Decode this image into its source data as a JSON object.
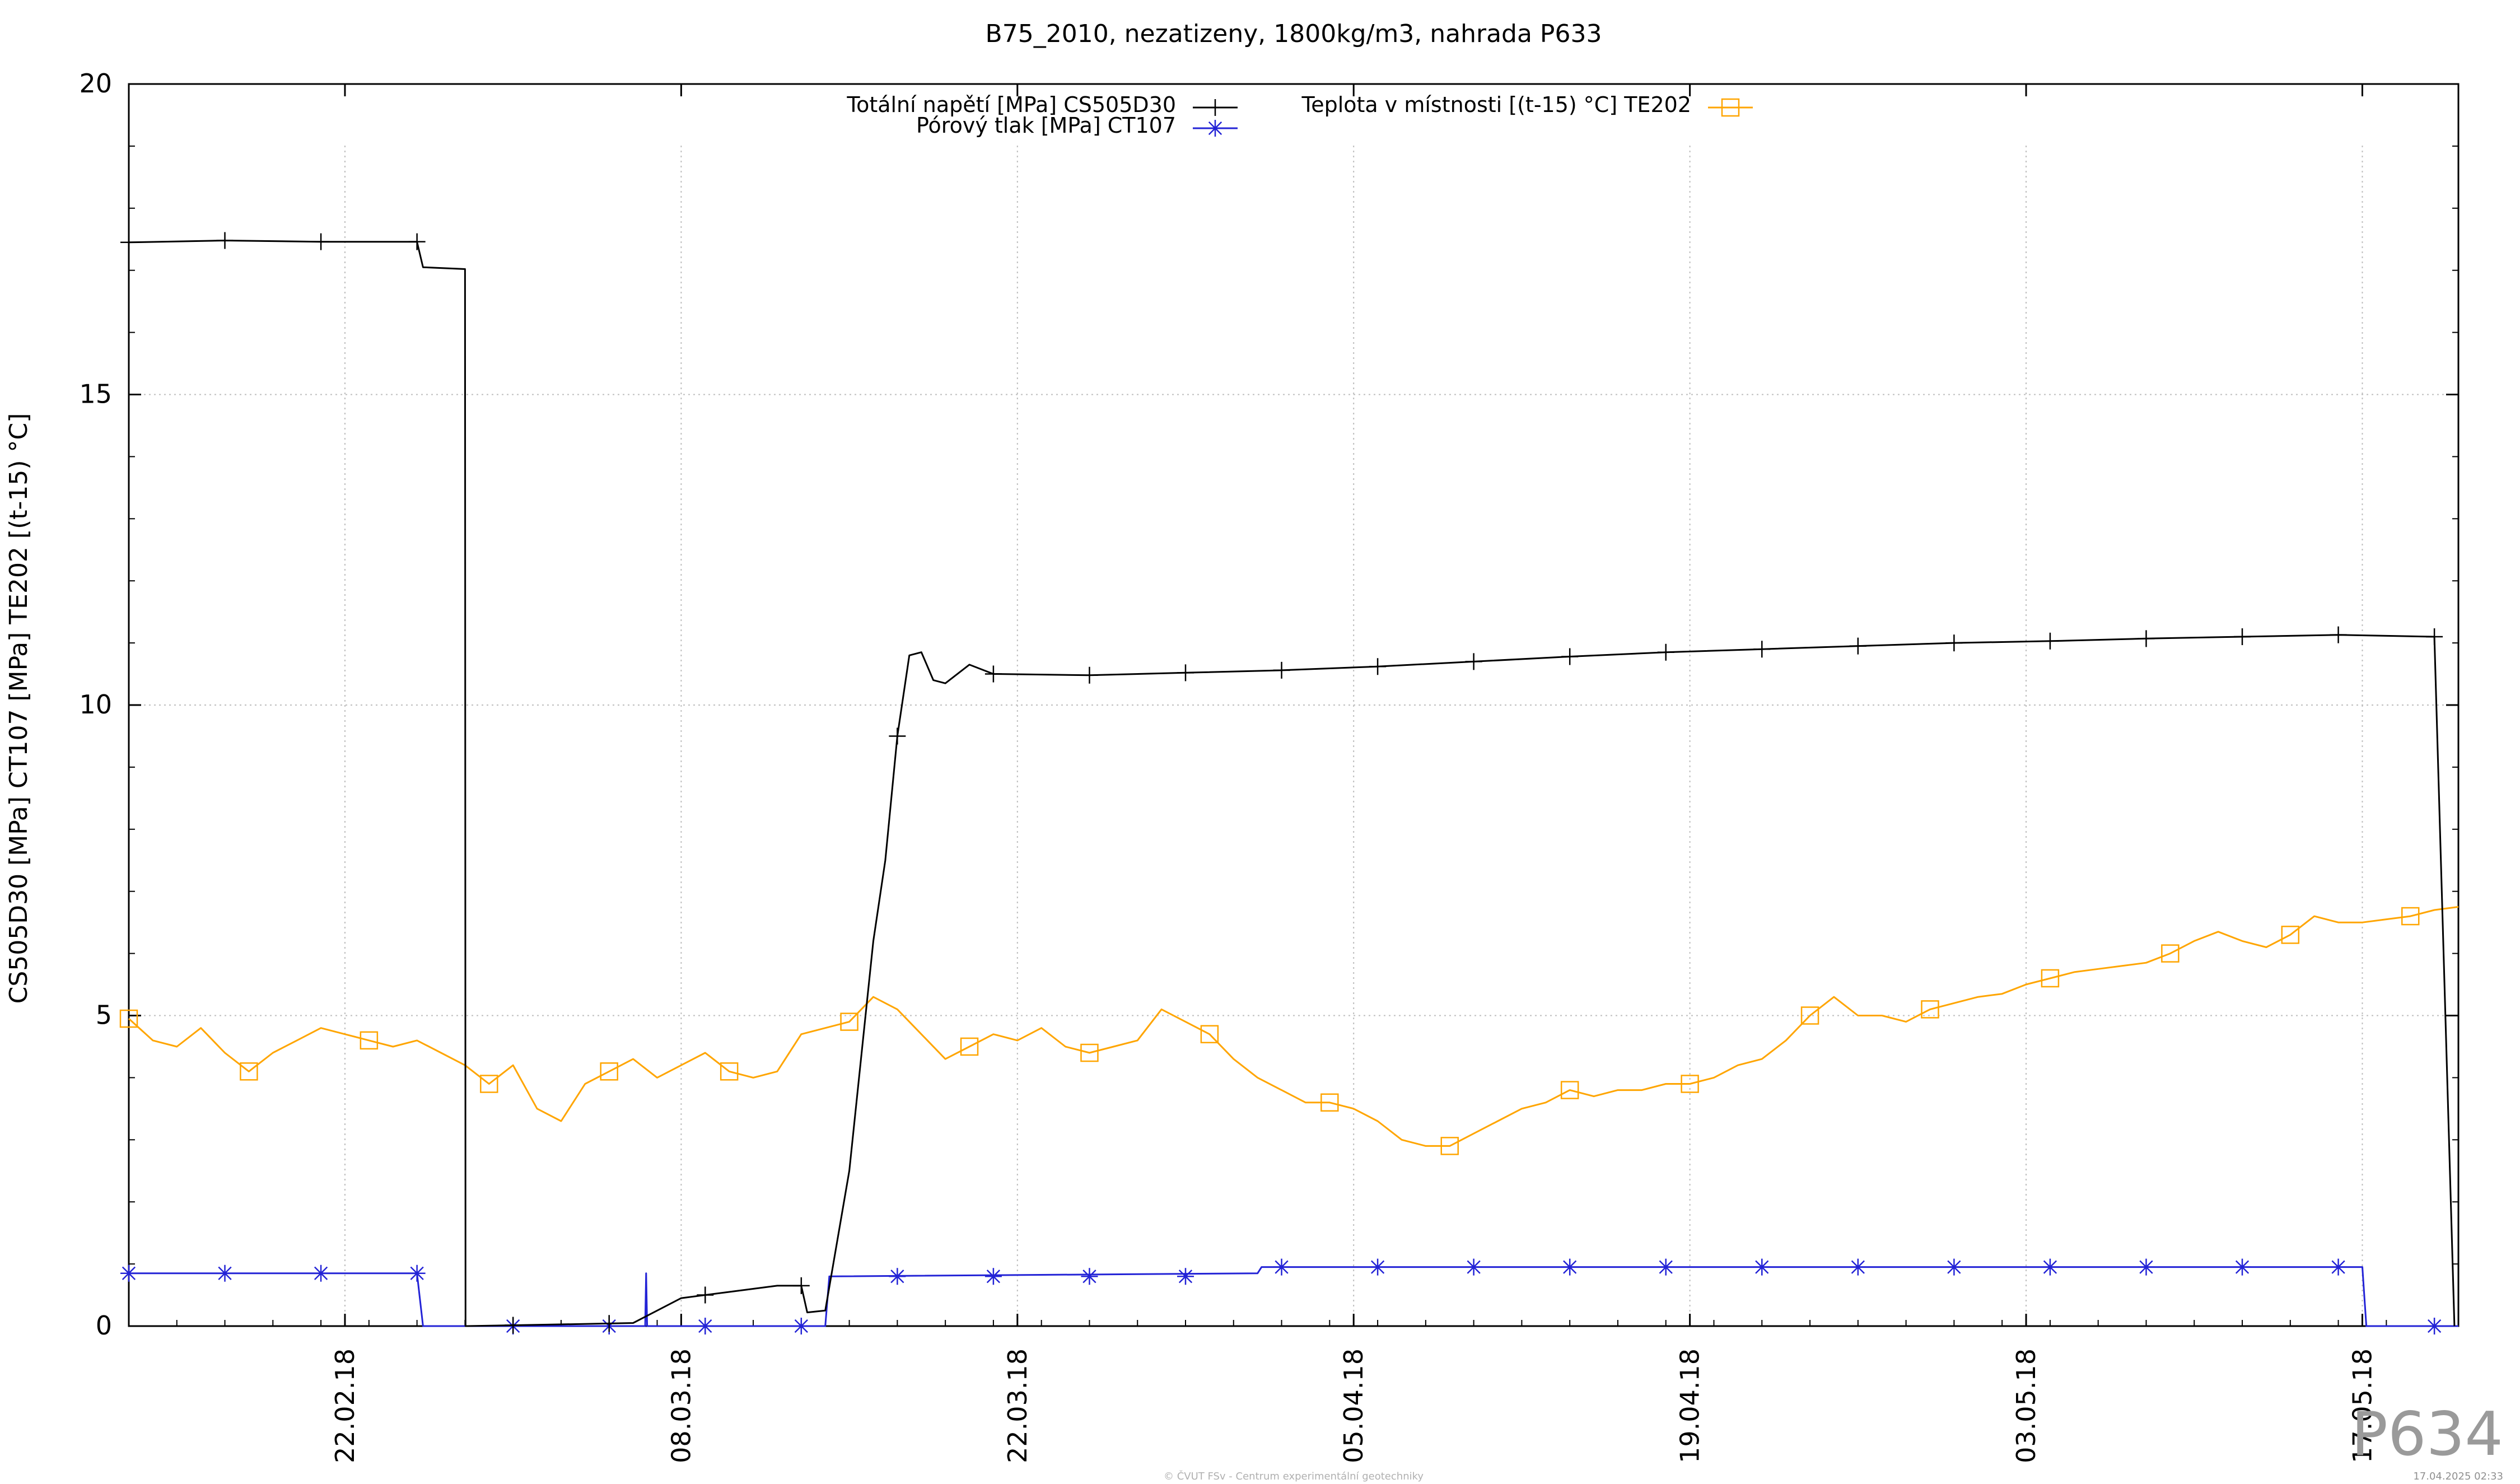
{
  "chart_data": {
    "type": "line",
    "title": "B75_2010, nezatizeny, 1800kg/m3, nahrada P633",
    "xlabel": "",
    "ylabel": "CS505D30 [MPa] CT107 [MPa] TE202 [(t-15) °C]",
    "xlim": [
      "2018-02-13",
      "2018-05-21"
    ],
    "ylim": [
      0,
      20
    ],
    "y_ticks": [
      0,
      5,
      10,
      15,
      20
    ],
    "x_ticks": [
      {
        "date": "2018-02-22",
        "label": "22.02.18"
      },
      {
        "date": "2018-03-08",
        "label": "08.03.18"
      },
      {
        "date": "2018-03-22",
        "label": "22.03.18"
      },
      {
        "date": "2018-04-05",
        "label": "05.04.18"
      },
      {
        "date": "2018-04-19",
        "label": "19.04.18"
      },
      {
        "date": "2018-05-03",
        "label": "03.05.18"
      },
      {
        "date": "2018-05-17",
        "label": "17.05.18"
      }
    ],
    "grid": true,
    "legend": "top",
    "series": [
      {
        "name": "Totální napětí [MPa] CS505D30",
        "color": "#000000",
        "marker": "plus",
        "x": [
          "2018-02-13",
          "2018-02-17",
          "2018-02-21",
          "2018-02-25",
          "2018-02-25T06:00",
          "2018-02-27",
          "2018-02-27T00:30",
          "2018-03-02",
          "2018-03-06",
          "2018-03-07",
          "2018-03-08",
          "2018-03-10",
          "2018-03-12",
          "2018-03-13",
          "2018-03-13T06:00",
          "2018-03-14",
          "2018-03-15",
          "2018-03-16",
          "2018-03-16T12:00",
          "2018-03-17",
          "2018-03-17T12:00",
          "2018-03-18",
          "2018-03-18T12:00",
          "2018-03-19",
          "2018-03-20",
          "2018-03-21",
          "2018-03-25",
          "2018-03-29",
          "2018-04-02",
          "2018-04-06",
          "2018-04-10",
          "2018-04-14",
          "2018-04-18",
          "2018-04-22",
          "2018-04-26",
          "2018-04-30",
          "2018-05-04",
          "2018-05-08",
          "2018-05-12",
          "2018-05-16",
          "2018-05-20",
          "2018-05-20T20:00"
        ],
        "y": [
          17.45,
          17.48,
          17.46,
          17.46,
          17.05,
          17.02,
          0.0,
          0.02,
          0.05,
          0.25,
          0.45,
          0.55,
          0.65,
          0.65,
          0.22,
          0.25,
          2.5,
          6.2,
          7.5,
          9.5,
          10.8,
          10.85,
          10.4,
          10.35,
          10.65,
          10.5,
          10.48,
          10.52,
          10.56,
          10.62,
          10.7,
          10.78,
          10.85,
          10.9,
          10.95,
          11.0,
          11.03,
          11.07,
          11.1,
          11.13,
          11.1,
          0.0
        ]
      },
      {
        "name": "Pórový tlak [MPa] CT107",
        "color": "#2323d6",
        "marker": "star",
        "x": [
          "2018-02-13",
          "2018-02-25",
          "2018-02-25T06:00",
          "2018-03-06T12:00",
          "2018-03-06T13:00",
          "2018-03-06T14:00",
          "2018-03-14",
          "2018-03-14T04:00",
          "2018-04-01",
          "2018-04-01T04:00",
          "2018-05-17",
          "2018-05-17T04:00",
          "2018-05-21"
        ],
        "y": [
          0.85,
          0.85,
          0.0,
          0.0,
          0.85,
          0.0,
          0.0,
          0.8,
          0.85,
          0.95,
          0.95,
          0.0,
          0.0
        ]
      },
      {
        "name": "Teplota v místnosti [(t-15) °C] TE202",
        "color": "#ffa500",
        "marker": "square",
        "x": [
          "2018-02-13",
          "2018-02-14",
          "2018-02-15",
          "2018-02-16",
          "2018-02-17",
          "2018-02-18",
          "2018-02-19",
          "2018-02-20",
          "2018-02-21",
          "2018-02-22",
          "2018-02-23",
          "2018-02-24",
          "2018-02-25",
          "2018-02-26",
          "2018-02-27",
          "2018-02-28",
          "2018-03-01",
          "2018-03-02",
          "2018-03-03",
          "2018-03-04",
          "2018-03-05",
          "2018-03-06",
          "2018-03-07",
          "2018-03-08",
          "2018-03-09",
          "2018-03-10",
          "2018-03-11",
          "2018-03-12",
          "2018-03-13",
          "2018-03-14",
          "2018-03-15",
          "2018-03-16",
          "2018-03-17",
          "2018-03-18",
          "2018-03-19",
          "2018-03-20",
          "2018-03-21",
          "2018-03-22",
          "2018-03-23",
          "2018-03-24",
          "2018-03-25",
          "2018-03-26",
          "2018-03-27",
          "2018-03-28",
          "2018-03-29",
          "2018-03-30",
          "2018-03-31",
          "2018-04-01",
          "2018-04-02",
          "2018-04-03",
          "2018-04-04",
          "2018-04-05",
          "2018-04-06",
          "2018-04-07",
          "2018-04-08",
          "2018-04-09",
          "2018-04-10",
          "2018-04-11",
          "2018-04-12",
          "2018-04-13",
          "2018-04-14",
          "2018-04-15",
          "2018-04-16",
          "2018-04-17",
          "2018-04-18",
          "2018-04-19",
          "2018-04-20",
          "2018-04-21",
          "2018-04-22",
          "2018-04-23",
          "2018-04-24",
          "2018-04-25",
          "2018-04-26",
          "2018-04-27",
          "2018-04-28",
          "2018-04-29",
          "2018-04-30",
          "2018-05-01",
          "2018-05-02",
          "2018-05-03",
          "2018-05-04",
          "2018-05-05",
          "2018-05-06",
          "2018-05-07",
          "2018-05-08",
          "2018-05-09",
          "2018-05-10",
          "2018-05-11",
          "2018-05-12",
          "2018-05-13",
          "2018-05-14",
          "2018-05-15",
          "2018-05-16",
          "2018-05-17",
          "2018-05-18",
          "2018-05-19",
          "2018-05-20",
          "2018-05-21"
        ],
        "y": [
          4.95,
          4.6,
          4.5,
          4.8,
          4.4,
          4.1,
          4.4,
          4.6,
          4.8,
          4.7,
          4.6,
          4.5,
          4.6,
          4.4,
          4.2,
          3.9,
          4.2,
          3.5,
          3.3,
          3.9,
          4.1,
          4.3,
          4.0,
          4.2,
          4.4,
          4.1,
          4.0,
          4.1,
          4.7,
          4.8,
          4.9,
          5.3,
          5.1,
          4.7,
          4.3,
          4.5,
          4.7,
          4.6,
          4.8,
          4.5,
          4.4,
          4.5,
          4.6,
          5.1,
          4.9,
          4.7,
          4.3,
          4.0,
          3.8,
          3.6,
          3.6,
          3.5,
          3.3,
          3.0,
          2.9,
          2.9,
          3.1,
          3.3,
          3.5,
          3.6,
          3.8,
          3.7,
          3.8,
          3.8,
          3.9,
          3.9,
          4.0,
          4.2,
          4.3,
          4.6,
          5.0,
          5.3,
          5.0,
          5.0,
          4.9,
          5.1,
          5.2,
          5.3,
          5.35,
          5.5,
          5.6,
          5.7,
          5.75,
          5.8,
          5.85,
          6.0,
          6.2,
          6.35,
          6.2,
          6.1,
          6.3,
          6.6,
          6.5,
          6.5,
          6.55,
          6.6,
          6.7,
          6.75
        ]
      }
    ]
  },
  "footer": {
    "copyright": "© ČVUT FSv - Centrum experimentální geotechniky",
    "timestamp": "17.04.2025 02:33",
    "sensor_id": "P634"
  }
}
